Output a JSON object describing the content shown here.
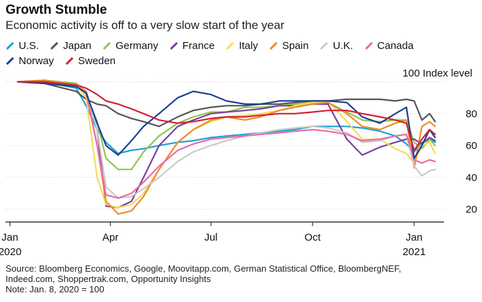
{
  "title": "Growth Stumble",
  "subtitle": "Economic activity is off to a very slow start of the year",
  "unit_label": "100 Index level",
  "footer": {
    "source_line1": "Source: Bloomberg Economics, Google, Moovitapp.com, German Statistical Office, BloombergNEF,",
    "source_line2": "Indeed.com, Shoppertrak.com, Opportunity Insights",
    "note": "Note: Jan. 8, 2020 = 100"
  },
  "chart_data": {
    "type": "line",
    "title": "Growth Stumble",
    "subtitle": "Economic activity is off to a very slow start of the year",
    "xlabel": "",
    "ylabel": "100 Index level",
    "ylim": [
      12,
      102
    ],
    "yticks": [
      20,
      40,
      60,
      80
    ],
    "xticks": [
      {
        "label": "Jan",
        "sub": "2020",
        "date": "2020-01-01"
      },
      {
        "label": "Apr",
        "sub": "",
        "date": "2020-04-01"
      },
      {
        "label": "Jul",
        "sub": "",
        "date": "2020-07-01"
      },
      {
        "label": "Oct",
        "sub": "",
        "date": "2020-10-01"
      },
      {
        "label": "Jan",
        "sub": "2021",
        "date": "2021-01-01"
      }
    ],
    "xrange": [
      "2019-12-28",
      "2021-01-28"
    ],
    "grid": "horizontal",
    "legend_position": "top",
    "x": [
      "2020-01-08",
      "2020-02-01",
      "2020-03-01",
      "2020-03-10",
      "2020-03-20",
      "2020-03-28",
      "2020-04-08",
      "2020-04-20",
      "2020-05-01",
      "2020-05-15",
      "2020-06-01",
      "2020-06-15",
      "2020-07-01",
      "2020-07-15",
      "2020-08-01",
      "2020-08-15",
      "2020-09-01",
      "2020-09-15",
      "2020-10-01",
      "2020-10-15",
      "2020-11-01",
      "2020-11-15",
      "2020-12-01",
      "2020-12-15",
      "2020-12-25",
      "2021-01-01",
      "2021-01-08",
      "2021-01-15",
      "2021-01-20"
    ],
    "series": [
      {
        "name": "U.S.",
        "color": "#1aa3d9",
        "values": [
          100,
          100,
          96,
          85,
          70,
          62,
          55,
          57,
          58,
          60,
          62,
          63,
          65,
          66,
          67,
          68,
          69,
          70,
          72,
          72,
          72,
          71,
          69,
          66,
          61,
          56,
          62,
          64,
          62
        ]
      },
      {
        "name": "Japan",
        "color": "#555555",
        "values": [
          100,
          99,
          94,
          89,
          86,
          85,
          80,
          77,
          75,
          72,
          78,
          82,
          84,
          85,
          85,
          86,
          86,
          87,
          88,
          88,
          89,
          89,
          89,
          88,
          89,
          88,
          76,
          80,
          75
        ]
      },
      {
        "name": "Germany",
        "color": "#8cc84b",
        "values": [
          100,
          101,
          99,
          92,
          75,
          52,
          45,
          45,
          56,
          66,
          74,
          78,
          81,
          81,
          84,
          84,
          85,
          86,
          87,
          87,
          81,
          76,
          75,
          76,
          76,
          62,
          58,
          64,
          60
        ]
      },
      {
        "name": "France",
        "color": "#7b3fa0",
        "values": [
          100,
          99,
          97,
          94,
          70,
          22,
          21,
          25,
          40,
          60,
          72,
          76,
          80,
          81,
          82,
          83,
          85,
          85,
          86,
          86,
          64,
          54,
          59,
          62,
          64,
          64,
          61,
          65,
          63
        ]
      },
      {
        "name": "Italy",
        "color": "#f5dc5a",
        "values": [
          100,
          101,
          98,
          90,
          40,
          23,
          21,
          23,
          30,
          45,
          62,
          70,
          75,
          78,
          79,
          80,
          82,
          85,
          87,
          88,
          75,
          64,
          64,
          58,
          55,
          49,
          60,
          62,
          55
        ]
      },
      {
        "name": "Spain",
        "color": "#f08a2c",
        "values": [
          100,
          101,
          98,
          94,
          60,
          25,
          17,
          19,
          28,
          45,
          62,
          70,
          76,
          78,
          76,
          78,
          82,
          84,
          86,
          87,
          80,
          72,
          70,
          74,
          76,
          46,
          72,
          75,
          72
        ]
      },
      {
        "name": "U.K.",
        "color": "#c9c9c9",
        "values": [
          100,
          100,
          97,
          93,
          70,
          34,
          27,
          28,
          33,
          40,
          50,
          56,
          60,
          63,
          66,
          68,
          70,
          71,
          72,
          71,
          68,
          62,
          63,
          66,
          67,
          47,
          41,
          44,
          45
        ]
      },
      {
        "name": "Canada",
        "color": "#e86ca3",
        "values": [
          100,
          100,
          97,
          93,
          60,
          29,
          27,
          30,
          37,
          47,
          57,
          61,
          64,
          65,
          66,
          67,
          68,
          69,
          70,
          69,
          67,
          63,
          64,
          66,
          67,
          51,
          49,
          51,
          50
        ]
      },
      {
        "name": "Norway",
        "color": "#1c3f94",
        "values": [
          100,
          99,
          97,
          93,
          74,
          60,
          54,
          63,
          72,
          80,
          90,
          94,
          92,
          88,
          86,
          86,
          88,
          88,
          88,
          88,
          87,
          78,
          74,
          80,
          84,
          52,
          60,
          70,
          65
        ]
      },
      {
        "name": "Sweden",
        "color": "#cf2232",
        "values": [
          100,
          100,
          98,
          96,
          92,
          88,
          86,
          83,
          80,
          76,
          74,
          75,
          77,
          78,
          78,
          79,
          80,
          80,
          81,
          82,
          82,
          80,
          78,
          76,
          74,
          57,
          64,
          70,
          67
        ]
      }
    ]
  }
}
